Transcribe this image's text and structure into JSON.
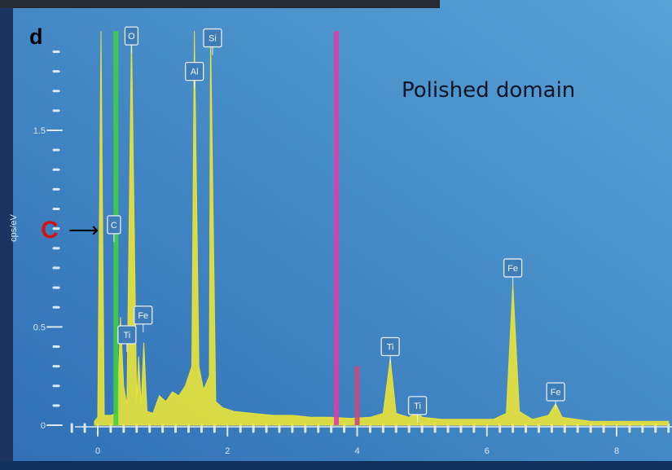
{
  "panel_label": "d",
  "colors": {
    "background_light": "#58a2d6",
    "background_dark": "#2f6fb5",
    "spectrum": "#e6e23c",
    "carbon_marker": "#3fcf3f",
    "magenta_marker": "#dd3ea8",
    "small_marker": "#c44a7a",
    "tick": "#dbe7f2",
    "peak_label_bg": "#3f7db8",
    "peak_label_border": "#e7eef5",
    "annotation_red": "#d01414"
  },
  "chart_data": {
    "type": "line",
    "title": "",
    "annotation": "Polished domain",
    "xlabel": "",
    "ylabel": "cps/eV",
    "xlim": [
      -0.5,
      8.8
    ],
    "ylim": [
      -0.05,
      2.05
    ],
    "x_ticks": [
      0,
      2,
      4,
      6,
      8
    ],
    "x_tick_labels": [
      "0",
      "2",
      "4",
      "6",
      "8"
    ],
    "y_ticks": [
      0,
      0.5,
      1.5
    ],
    "y_tick_labels": [
      "0",
      "0.5",
      "1.5"
    ],
    "series": [
      {
        "points": [
          [
            -0.05,
            0.02
          ],
          [
            0.0,
            0.04
          ],
          [
            0.05,
            2.05
          ],
          [
            0.1,
            0.05
          ],
          [
            0.2,
            0.05
          ],
          [
            0.3,
            0.06
          ],
          [
            0.35,
            0.55
          ],
          [
            0.4,
            0.2
          ],
          [
            0.45,
            0.1
          ],
          [
            0.52,
            2.05
          ],
          [
            0.6,
            0.12
          ],
          [
            0.63,
            0.35
          ],
          [
            0.67,
            0.1
          ],
          [
            0.71,
            0.42
          ],
          [
            0.76,
            0.07
          ],
          [
            0.85,
            0.06
          ],
          [
            0.95,
            0.15
          ],
          [
            1.05,
            0.12
          ],
          [
            1.15,
            0.17
          ],
          [
            1.25,
            0.15
          ],
          [
            1.35,
            0.2
          ],
          [
            1.45,
            0.3
          ],
          [
            1.49,
            2.05
          ],
          [
            1.56,
            0.3
          ],
          [
            1.63,
            0.18
          ],
          [
            1.72,
            0.25
          ],
          [
            1.74,
            2.05
          ],
          [
            1.82,
            0.12
          ],
          [
            1.92,
            0.09
          ],
          [
            2.1,
            0.07
          ],
          [
            2.4,
            0.06
          ],
          [
            2.7,
            0.05
          ],
          [
            3.0,
            0.05
          ],
          [
            3.3,
            0.04
          ],
          [
            3.6,
            0.04
          ],
          [
            3.9,
            0.035
          ],
          [
            4.2,
            0.04
          ],
          [
            4.4,
            0.06
          ],
          [
            4.51,
            0.34
          ],
          [
            4.6,
            0.06
          ],
          [
            4.8,
            0.04
          ],
          [
            4.93,
            0.07
          ],
          [
            5.0,
            0.04
          ],
          [
            5.3,
            0.03
          ],
          [
            5.7,
            0.03
          ],
          [
            6.1,
            0.03
          ],
          [
            6.3,
            0.06
          ],
          [
            6.4,
            0.72
          ],
          [
            6.5,
            0.07
          ],
          [
            6.7,
            0.03
          ],
          [
            6.95,
            0.05
          ],
          [
            7.06,
            0.11
          ],
          [
            7.16,
            0.04
          ],
          [
            7.6,
            0.02
          ],
          [
            8.2,
            0.02
          ],
          [
            8.8,
            0.02
          ]
        ]
      }
    ],
    "markers": [
      {
        "x": 0.28,
        "color": "#3fcf3f"
      },
      {
        "x": 3.68,
        "color": "#dd3ea8"
      },
      {
        "x": 4.0,
        "y": 0.3,
        "color": "#c44a7a"
      }
    ],
    "peak_labels": [
      {
        "label": "C",
        "x": 0.25,
        "y": 1.02
      },
      {
        "label": "O",
        "x": 0.52,
        "y": 1.98
      },
      {
        "label": "Ti",
        "x": 0.45,
        "y": 0.46
      },
      {
        "label": "Fe",
        "x": 0.7,
        "y": 0.56
      },
      {
        "label": "Al",
        "x": 1.49,
        "y": 1.8
      },
      {
        "label": "Si",
        "x": 1.77,
        "y": 1.97
      },
      {
        "label": "Ti",
        "x": 4.51,
        "y": 0.4
      },
      {
        "label": "Ti",
        "x": 4.93,
        "y": 0.1
      },
      {
        "label": "Fe",
        "x": 6.4,
        "y": 0.8
      },
      {
        "label": "Fe",
        "x": 7.06,
        "y": 0.17
      }
    ]
  },
  "annotations": {
    "c_label": "C",
    "arrow": "⟶"
  }
}
